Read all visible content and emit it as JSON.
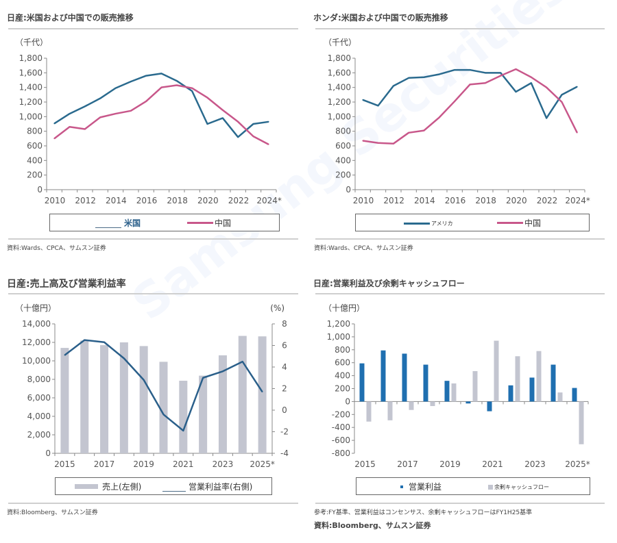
{
  "watermark": "Samsung Securities",
  "colors": {
    "us_line": "#2a6a8e",
    "china_line": "#c8578a",
    "sales_bar": "#c3c5d0",
    "opm_line": "#2a5f8a",
    "op_bar": "#1f6fb0",
    "fcf_bar": "#c3c5d0"
  },
  "panels": {
    "nissan_sales": {
      "title": "日産:米国および中国での販売推移",
      "unit": "（千代）",
      "legend": {
        "us": "米国",
        "china": "中国"
      },
      "source": "資料:Wards、CPCA、サムスン証券"
    },
    "honda_sales": {
      "title": "ホンダ:米国および中国での販売推移",
      "unit": "（千代）",
      "legend": {
        "us": "アメリカ",
        "china": "中国"
      },
      "source": "資料:Wards、CPCA、サムスン証券"
    },
    "nissan_revenue": {
      "title": "日産:売上高及び営業利益率",
      "unit_left": "（十億円）",
      "unit_right": "(%)",
      "legend": {
        "sales": "売上(左側)",
        "opm": "営業利益率(右側)"
      },
      "source": "資料:Bloomberg、サムスン証券"
    },
    "nissan_cashflow": {
      "title": "日産:営業利益及び余剰キャッシュフロー",
      "unit": "（十億円）",
      "legend": {
        "op": "営業利益",
        "fcf": "余剰キャッシュフロー"
      },
      "note": "参考:FY基準、営業利益はコンセンサス、余剰キャッシュフローはFY1H25基準",
      "source": "資料:Bloomberg、サムスン証券"
    }
  },
  "chart_data": [
    {
      "type": "line",
      "title": "日産:米国および中国での販売推移",
      "ylabel": "（千代）",
      "x": [
        2010,
        2011,
        2012,
        2013,
        2014,
        2015,
        2016,
        2017,
        2018,
        2019,
        2020,
        2021,
        2022,
        2023,
        2024
      ],
      "xtick_labels": [
        "2010",
        "2012",
        "2014",
        "2016",
        "2018",
        "2020",
        "2022",
        "2024*"
      ],
      "ylim": [
        0,
        1800
      ],
      "yticks": [
        0,
        200,
        400,
        600,
        800,
        1000,
        1200,
        1400,
        1600,
        1800
      ],
      "ytick_labels": [
        "0",
        "200",
        "400",
        "600",
        "800",
        "1,000",
        "1,200",
        "1,400",
        "1,600",
        "1,800"
      ],
      "legend_position": "bottom",
      "series": [
        {
          "name": "米国",
          "values": [
            905,
            1040,
            1140,
            1250,
            1390,
            1480,
            1560,
            1590,
            1490,
            1350,
            900,
            980,
            720,
            900,
            930
          ]
        },
        {
          "name": "中国",
          "values": [
            700,
            860,
            830,
            990,
            1040,
            1080,
            1210,
            1400,
            1430,
            1390,
            1260,
            1090,
            930,
            730,
            620
          ]
        }
      ]
    },
    {
      "type": "line",
      "title": "ホンダ:米国および中国での販売推移",
      "ylabel": "（千代）",
      "x": [
        2010,
        2011,
        2012,
        2013,
        2014,
        2015,
        2016,
        2017,
        2018,
        2019,
        2020,
        2021,
        2022,
        2023,
        2024
      ],
      "xtick_labels": [
        "2010",
        "2012",
        "2014",
        "2016",
        "2018",
        "2020",
        "2022",
        "2024*"
      ],
      "ylim": [
        0,
        1800
      ],
      "yticks": [
        0,
        200,
        400,
        600,
        800,
        1000,
        1200,
        1400,
        1600,
        1800
      ],
      "ytick_labels": [
        "0",
        "200",
        "400",
        "600",
        "800",
        "1,000",
        "1,200",
        "1,400",
        "1,600",
        "1,800"
      ],
      "legend_position": "bottom",
      "series": [
        {
          "name": "アメリカ",
          "values": [
            1230,
            1150,
            1420,
            1530,
            1540,
            1580,
            1640,
            1640,
            1600,
            1600,
            1340,
            1460,
            980,
            1300,
            1410
          ]
        },
        {
          "name": "中国",
          "values": [
            670,
            640,
            630,
            780,
            810,
            990,
            1210,
            1440,
            1460,
            1560,
            1650,
            1540,
            1400,
            1200,
            780
          ]
        }
      ]
    },
    {
      "type": "bar",
      "title": "日産:売上高及び営業利益率",
      "ylabel": "（十億円）",
      "y2label": "(%)",
      "x": [
        2015,
        2016,
        2017,
        2018,
        2019,
        2020,
        2021,
        2022,
        2023,
        2024,
        2025
      ],
      "xtick_labels": [
        "2015",
        "2017",
        "2019",
        "2021",
        "2023",
        "2025*"
      ],
      "ylim": [
        0,
        14000
      ],
      "yticks": [
        0,
        2000,
        4000,
        6000,
        8000,
        10000,
        12000,
        14000
      ],
      "ytick_labels": [
        "0",
        "2,000",
        "4,000",
        "6,000",
        "8,000",
        "10,000",
        "12,000",
        "14,000"
      ],
      "y2lim": [
        -4,
        8
      ],
      "y2ticks": [
        -4,
        -2,
        0,
        2,
        4,
        6,
        8
      ],
      "y2tick_labels": [
        "-4",
        "-2",
        "0",
        "2",
        "4",
        "6",
        "8"
      ],
      "legend_position": "bottom",
      "series": [
        {
          "name": "売上(左側)",
          "type": "bar",
          "axis": "left",
          "values": [
            11400,
            12200,
            11700,
            12000,
            11600,
            9900,
            7850,
            8400,
            10600,
            12700,
            12650
          ]
        },
        {
          "name": "営業利益率(右側)",
          "type": "line",
          "axis": "right",
          "values": [
            5.1,
            6.5,
            6.3,
            4.8,
            2.8,
            -0.4,
            -1.9,
            3.0,
            3.6,
            4.5,
            1.7
          ]
        }
      ]
    },
    {
      "type": "bar",
      "title": "日産:営業利益及び余剰キャッシュフロー",
      "ylabel": "（十億円）",
      "x": [
        2015,
        2016,
        2017,
        2018,
        2019,
        2020,
        2021,
        2022,
        2023,
        2024,
        2025
      ],
      "xtick_labels": [
        "2015",
        "2017",
        "2019",
        "2021",
        "2023",
        "2025*"
      ],
      "ylim": [
        -800,
        1200
      ],
      "yticks": [
        -800,
        -600,
        -400,
        -200,
        0,
        200,
        400,
        600,
        800,
        1000,
        1200
      ],
      "ytick_labels": [
        "-800",
        "-600",
        "-400",
        "-200",
        "0",
        "200",
        "400",
        "600",
        "800",
        "1,000",
        "1,200"
      ],
      "legend_position": "bottom",
      "series": [
        {
          "name": "営業利益",
          "values": [
            590,
            790,
            740,
            570,
            320,
            -30,
            -150,
            250,
            370,
            570,
            210
          ]
        },
        {
          "name": "余剰キャッシュフロー",
          "values": [
            -310,
            -290,
            -130,
            -70,
            280,
            470,
            940,
            700,
            780,
            140,
            -660
          ]
        }
      ]
    }
  ]
}
